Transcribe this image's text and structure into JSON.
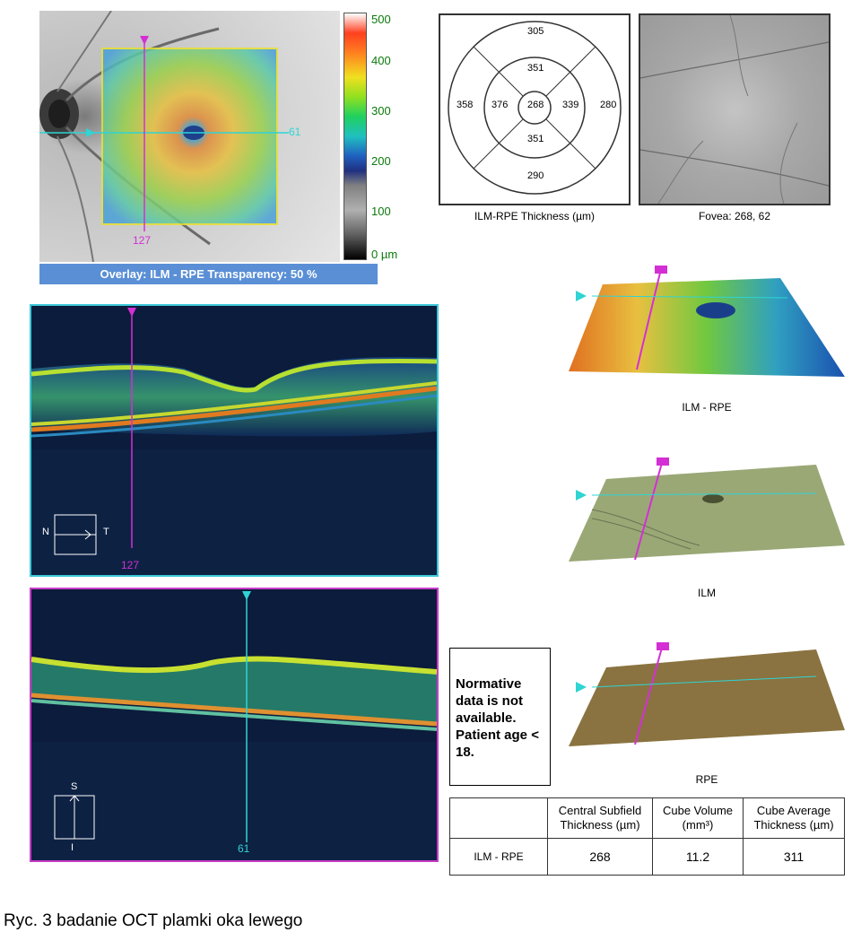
{
  "fundus": {
    "colorbar_ticks": [
      "500",
      "400",
      "300",
      "200",
      "100",
      "0 µm"
    ],
    "h_line_value": "61",
    "v_line_value": "127",
    "overlay_label": "Overlay: ILM - RPE  Transparency: 50 %"
  },
  "etdrs": {
    "outer_top": "305",
    "outer_left": "358",
    "outer_right": "280",
    "outer_bottom": "290",
    "inner_top": "351",
    "inner_left": "376",
    "inner_right": "339",
    "inner_bottom": "351",
    "center": "268",
    "caption": "ILM-RPE Thickness (µm)"
  },
  "fovea_panel": {
    "caption": "Fovea: 268, 62"
  },
  "bscan_horizontal": {
    "orientation_left": "N",
    "orientation_right": "T",
    "slice_label": "127"
  },
  "bscan_vertical": {
    "orientation_top": "S",
    "orientation_bottom": "I",
    "slice_label": "61"
  },
  "surfaces": {
    "ilm_rpe_label": "ILM - RPE",
    "ilm_label": "ILM",
    "rpe_label": "RPE"
  },
  "normative_note": "Normative data is not available. Patient age < 18.",
  "measurements": {
    "headers": [
      "",
      "Central Subfield Thickness (µm)",
      "Cube Volume (mm³)",
      "Cube Average Thickness (µm)"
    ],
    "row": [
      "ILM - RPE",
      "268",
      "11.2",
      "311"
    ]
  },
  "figure_caption": "Ryc. 3 badanie OCT plamki oka lewego",
  "colors": {
    "cyan_marker": "#2fd4d4",
    "magenta_marker": "#d42fd4",
    "overlay_bar": "#5a8fd6",
    "frame_cyan": "#3cc8d8",
    "frame_magenta": "#c83cc8"
  }
}
